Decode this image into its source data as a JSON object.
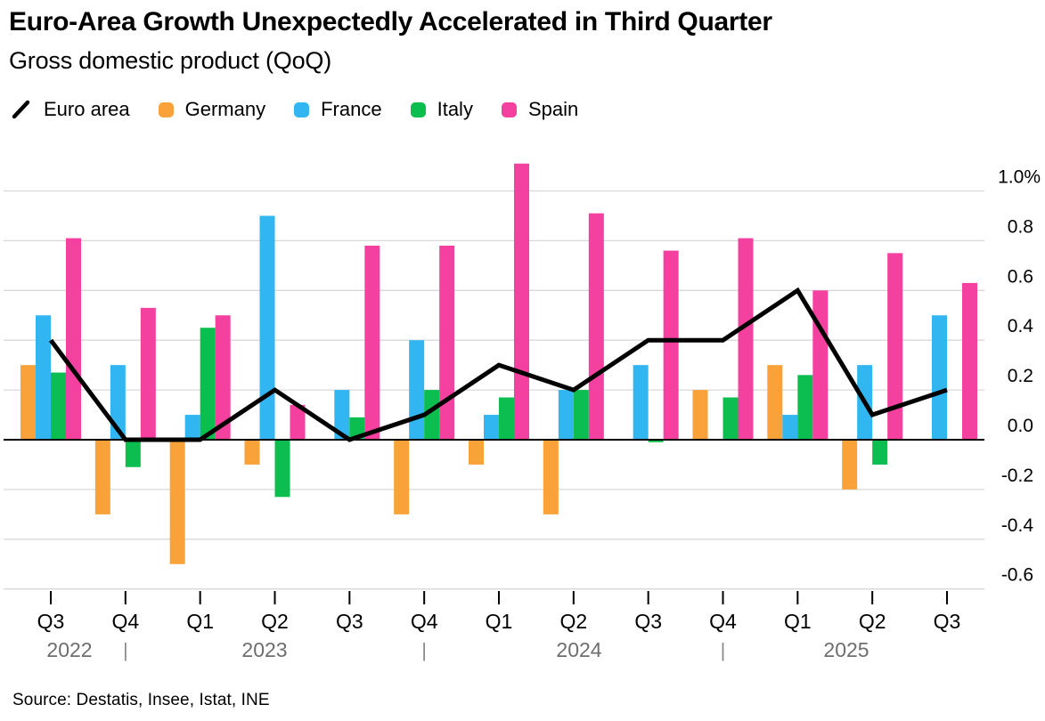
{
  "header": {
    "title": "Euro-Area Growth Unexpectedly Accelerated in Third Quarter",
    "subtitle": "Gross domestic product (QoQ)"
  },
  "legend": [
    {
      "label": "Euro area",
      "marker": "line",
      "color": "#000000"
    },
    {
      "label": "Germany",
      "marker": "square",
      "color": "#F9A23A"
    },
    {
      "label": "France",
      "marker": "square",
      "color": "#31B6F2"
    },
    {
      "label": "Italy",
      "marker": "square",
      "color": "#0CBE4F"
    },
    {
      "label": "Spain",
      "marker": "square",
      "color": "#F4419F"
    }
  ],
  "source": "Source: Destatis, Insee, Istat, INE",
  "chart_data": {
    "type": "bar",
    "unit": "%",
    "categories": [
      "Q3 2022",
      "Q4 2022",
      "Q1 2023",
      "Q2 2023",
      "Q3 2023",
      "Q4 2023",
      "Q1 2024",
      "Q2 2024",
      "Q3 2024",
      "Q4 2024",
      "Q1 2025",
      "Q2 2025",
      "Q3 2025"
    ],
    "quarter_labels": [
      "Q3",
      "Q4",
      "Q1",
      "Q2",
      "Q3",
      "Q4",
      "Q1",
      "Q2",
      "Q3",
      "Q4",
      "Q1",
      "Q2",
      "Q3"
    ],
    "years": [
      {
        "label": "2022",
        "quarters": [
          0,
          1
        ]
      },
      {
        "label": "2023",
        "quarters": [
          2,
          3,
          4,
          5
        ]
      },
      {
        "label": "2024",
        "quarters": [
          6,
          7,
          8,
          9
        ]
      },
      {
        "label": "2025",
        "quarters": [
          10,
          11,
          12
        ]
      }
    ],
    "year_separator_after_index": [
      1,
      5,
      9
    ],
    "series": [
      {
        "name": "Euro area",
        "type": "line",
        "color": "#000000",
        "values": [
          0.4,
          0.0,
          0.0,
          0.2,
          0.0,
          0.1,
          0.3,
          0.2,
          0.4,
          0.4,
          0.6,
          0.1,
          0.2
        ]
      },
      {
        "name": "Germany",
        "type": "bar",
        "color": "#F9A23A",
        "values": [
          0.3,
          -0.3,
          -0.5,
          -0.1,
          0.0,
          -0.3,
          -0.1,
          -0.3,
          0.0,
          0.2,
          0.3,
          -0.2,
          0.0
        ]
      },
      {
        "name": "France",
        "type": "bar",
        "color": "#31B6F2",
        "values": [
          0.5,
          0.3,
          0.1,
          0.9,
          0.2,
          0.4,
          0.1,
          0.2,
          0.3,
          0.0,
          0.1,
          0.3,
          0.5
        ]
      },
      {
        "name": "Italy",
        "type": "bar",
        "color": "#0CBE4F",
        "values": [
          0.27,
          -0.11,
          0.45,
          -0.23,
          0.09,
          0.2,
          0.17,
          0.2,
          -0.01,
          0.17,
          0.26,
          -0.1,
          0.0
        ]
      },
      {
        "name": "Spain",
        "type": "bar",
        "color": "#F4419F",
        "values": [
          0.81,
          0.53,
          0.5,
          0.14,
          0.78,
          0.78,
          1.11,
          0.91,
          0.76,
          0.81,
          0.6,
          0.75,
          0.63
        ]
      }
    ],
    "yticks": [
      1.0,
      0.8,
      0.6,
      0.4,
      0.2,
      0.0,
      -0.2,
      -0.4,
      -0.6
    ],
    "ytick_labels": [
      "1.0%",
      "0.8",
      "0.6",
      "0.4",
      "0.2",
      "0.0",
      "-0.2",
      "-0.4",
      "-0.6"
    ],
    "ylim": [
      -0.72,
      1.13
    ],
    "grid": true,
    "legend_position": "top",
    "y_axis_side": "right"
  },
  "colors": {
    "gridline": "#D8D8D8",
    "zero_line": "#000000",
    "year_text": "#6E6E6E",
    "separator": "#8A8A8A"
  }
}
